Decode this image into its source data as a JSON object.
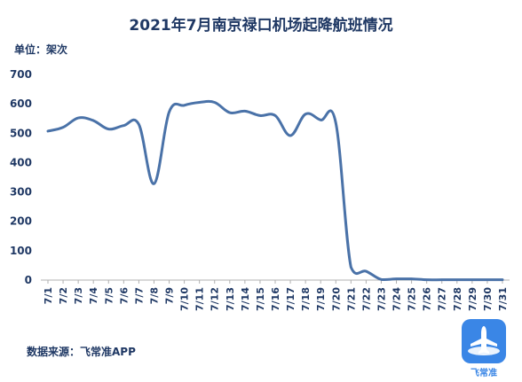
{
  "title": "2021年7月南京禄口机场起降航班情况",
  "unit_label": "单位：架次",
  "source": "数据来源：飞常准APP",
  "logo_text": "飞常准",
  "colors": {
    "line": "#4a72a8",
    "text": "#1f3864",
    "axis": "#b0b0b0",
    "logo": "#3a86e6"
  },
  "chart_data": {
    "type": "line",
    "categories": [
      "7/1",
      "7/2",
      "7/3",
      "7/4",
      "7/5",
      "7/6",
      "7/7",
      "7/8",
      "7/9",
      "7/10",
      "7/11",
      "7/12",
      "7/13",
      "7/14",
      "7/15",
      "7/16",
      "7/17",
      "7/18",
      "7/19",
      "7/20",
      "7/21",
      "7/22",
      "7/23",
      "7/24",
      "7/25",
      "7/26",
      "7/27",
      "7/28",
      "7/29",
      "7/30",
      "7/31"
    ],
    "series": [
      {
        "values": [
          507,
          520,
          552,
          543,
          514,
          526,
          530,
          328,
          572,
          595,
          605,
          605,
          570,
          575,
          560,
          560,
          492,
          565,
          545,
          535,
          44,
          30,
          2,
          4,
          4,
          1,
          1,
          1,
          1,
          1,
          1
        ]
      }
    ],
    "yticks": [
      0,
      100,
      200,
      300,
      400,
      500,
      600,
      700
    ],
    "ylim": [
      0,
      700
    ],
    "grid": false,
    "xlabel": "",
    "ylabel": ""
  }
}
